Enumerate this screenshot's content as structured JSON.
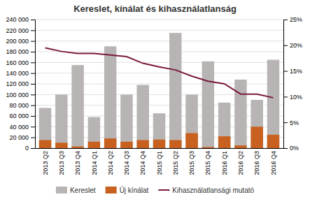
{
  "chart_data": {
    "type": "bar",
    "title": "Kereslet, kínálat és kihasználatlanság",
    "categories": [
      "2013 Q2",
      "2013 Q3",
      "2013 Q4",
      "2014 Q1",
      "2014 Q2",
      "2014 Q3",
      "2014 Q4",
      "2015 Q1",
      "2015 Q2",
      "2015 Q3",
      "2015 Q4",
      "2016 Q1",
      "2016 Q2",
      "2016 Q3",
      "2016 Q4"
    ],
    "series": [
      {
        "name": "Kereslet",
        "type": "bar",
        "color": "#b8b4b4",
        "values": [
          75000,
          100000,
          155000,
          58000,
          190000,
          100000,
          118000,
          65000,
          215000,
          100000,
          162000,
          85000,
          128000,
          90000,
          165000
        ]
      },
      {
        "name": "Új kínálat",
        "type": "bar",
        "color": "#c8611f",
        "values": [
          15000,
          10000,
          3000,
          12000,
          18000,
          12000,
          15000,
          16000,
          15000,
          28000,
          2000,
          22000,
          5000,
          40000,
          25000
        ]
      },
      {
        "name": "Kihasználatlansági mutató",
        "type": "line",
        "color": "#7b1a3e",
        "axis": "y2",
        "values": [
          0.195,
          0.188,
          0.184,
          0.184,
          0.181,
          0.178,
          0.165,
          0.158,
          0.152,
          0.14,
          0.13,
          0.125,
          0.105,
          0.105,
          0.098
        ]
      }
    ],
    "stacked": false,
    "ylim": [
      0,
      240000
    ],
    "yticks": [
      0,
      {
        "value": 20000,
        "label": "20 000"
      },
      {
        "value": 40000,
        "label": "40 000"
      },
      {
        "value": 60000,
        "label": "60 000"
      },
      {
        "value": 80000,
        "label": "80 000"
      },
      {
        "value": 100000,
        "label": "100 000"
      },
      {
        "value": 120000,
        "label": "120 000"
      },
      {
        "value": 140000,
        "label": "140 000"
      },
      {
        "value": 160000,
        "label": "160 000"
      },
      {
        "value": 180000,
        "label": "180 000"
      },
      {
        "value": 200000,
        "label": "200 000"
      },
      {
        "value": 220000,
        "label": "220 000"
      },
      {
        "value": 240000,
        "label": "240 000"
      }
    ],
    "y2lim": [
      0,
      0.25
    ],
    "y2ticks": [
      {
        "value": 0.0,
        "label": "0%"
      },
      {
        "value": 0.05,
        "label": "5%"
      },
      {
        "value": 0.1,
        "label": "10%"
      },
      {
        "value": 0.15,
        "label": "15%"
      },
      {
        "value": 0.2,
        "label": "20%"
      },
      {
        "value": 0.25,
        "label": "25%"
      }
    ],
    "grid": true,
    "legend": "bottom"
  }
}
